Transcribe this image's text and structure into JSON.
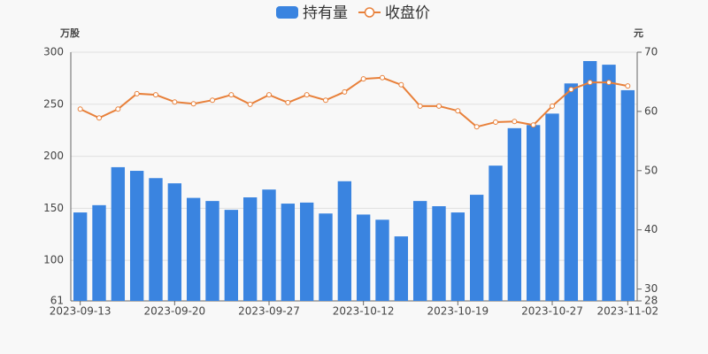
{
  "chart_data": {
    "type": "bar-line",
    "legend_position": "top",
    "y_label": "万股",
    "y2_label": "元",
    "categories": [
      "2023-09-13",
      null,
      null,
      null,
      null,
      "2023-09-20",
      null,
      null,
      null,
      null,
      "2023-09-27",
      null,
      null,
      null,
      null,
      "2023-10-12",
      null,
      null,
      null,
      null,
      "2023-10-19",
      null,
      null,
      null,
      null,
      "2023-10-27",
      null,
      null,
      null,
      "2023-11-02"
    ],
    "series": [
      {
        "name": "持有量",
        "type": "bar",
        "color": "#3a84e0",
        "values": [
          146,
          153,
          189.5,
          186,
          179,
          174,
          160,
          157,
          148.5,
          160.5,
          168,
          154.5,
          155.5,
          145,
          176,
          144,
          139,
          123,
          157,
          152,
          146,
          163,
          191,
          227,
          230,
          241,
          270,
          291.5,
          288,
          263.5
        ]
      },
      {
        "name": "收盘价",
        "type": "line",
        "axis": "y2",
        "color": "#e8803a",
        "values": [
          60.4,
          58.9,
          60.4,
          63.0,
          62.8,
          61.6,
          61.3,
          61.9,
          62.8,
          61.2,
          62.8,
          61.5,
          62.8,
          61.9,
          63.3,
          65.5,
          65.7,
          64.5,
          60.9,
          60.9,
          60.1,
          57.4,
          58.2,
          58.3,
          57.7,
          60.9,
          63.7,
          64.9,
          64.9,
          64.3
        ]
      }
    ],
    "ylim": [
      61,
      300
    ],
    "yticks": [
      61,
      100,
      150,
      200,
      250,
      300
    ],
    "y2lim": [
      28,
      70
    ],
    "y2ticks": [
      28,
      30,
      40,
      50,
      60,
      70
    ],
    "grid": true
  }
}
